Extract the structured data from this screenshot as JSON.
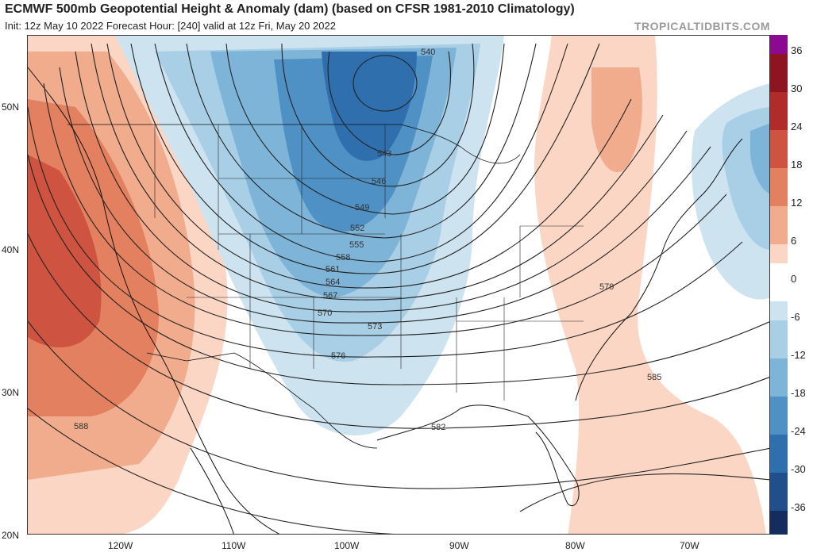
{
  "header": {
    "title": "ECMWF 500mb Geopotential Height & Anomaly (dam) (based on CFSR 1981-2010 Climatology)",
    "subtitle": "Init: 12z May 10 2022   Forecast Hour: [240]   valid at 12z Fri, May 20 2022",
    "brand": "TROPICALTIDBITS.COM"
  },
  "map": {
    "projection": "lat-lon",
    "lat_range": [
      20,
      55
    ],
    "lon_range": [
      -128,
      -63
    ],
    "lat_labels": [
      "50N",
      "40N",
      "30N",
      "20N"
    ],
    "lon_labels": [
      "120W",
      "110W",
      "100W",
      "90W",
      "80W",
      "70W"
    ],
    "height_contour_labels": [
      "540",
      "543",
      "546",
      "549",
      "552",
      "555",
      "558",
      "561",
      "564",
      "567",
      "570",
      "573",
      "576",
      "579",
      "582",
      "585",
      "588"
    ],
    "features": {
      "trough": "upper low over northern Plains / Minnesota near 540 dam",
      "ridges": [
        "West Coast ridge (positive anomaly)",
        "Eastern US ridge (positive anomaly)"
      ],
      "atlantic_low": "negative anomaly off Nova Scotia"
    }
  },
  "colorbar": {
    "ticks": [
      "36",
      "30",
      "24",
      "18",
      "12",
      "6",
      "0",
      "-6",
      "-12",
      "-18",
      "-24",
      "-30",
      "-36"
    ],
    "colors": {
      "pos_36": "#8b0a8f",
      "pos_30": "#8c1521",
      "pos_24": "#b22b2b",
      "pos_18": "#cf5341",
      "pos_12": "#e3805f",
      "pos_6": "#f1ac8d",
      "pos_3": "#fbd6c4",
      "neg_3": "#cde3f0",
      "neg_6": "#a9cfe6",
      "neg_12": "#7db4d8",
      "neg_18": "#4f91c4",
      "neg_24": "#2f6fae",
      "neg_30": "#214f8b",
      "neg_36": "#142d5e"
    }
  }
}
